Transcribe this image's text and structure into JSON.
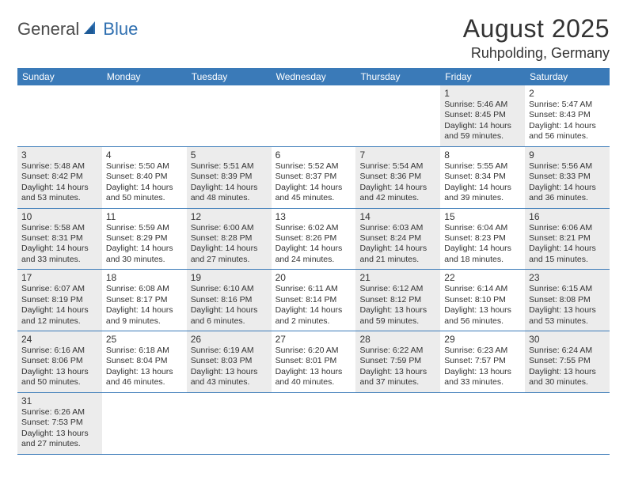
{
  "logo": {
    "part1": "General",
    "part2": "Blue"
  },
  "title": "August 2025",
  "location": "Ruhpolding, Germany",
  "colors": {
    "headerBar": "#3a7ab8",
    "headerText": "#ffffff",
    "shadedCell": "#ececec",
    "text": "#333333",
    "logoGray": "#4a4a4a",
    "logoBlue": "#2f6fb0",
    "rowBorder": "#3a7ab8"
  },
  "weekdays": [
    "Sunday",
    "Monday",
    "Tuesday",
    "Wednesday",
    "Thursday",
    "Friday",
    "Saturday"
  ],
  "weeks": [
    [
      {
        "day": null
      },
      {
        "day": null
      },
      {
        "day": null
      },
      {
        "day": null
      },
      {
        "day": null
      },
      {
        "day": 1,
        "shaded": true,
        "sunrise": "5:46 AM",
        "sunset": "8:45 PM",
        "daylight": "14 hours and 59 minutes."
      },
      {
        "day": 2,
        "shaded": false,
        "sunrise": "5:47 AM",
        "sunset": "8:43 PM",
        "daylight": "14 hours and 56 minutes."
      }
    ],
    [
      {
        "day": 3,
        "shaded": true,
        "sunrise": "5:48 AM",
        "sunset": "8:42 PM",
        "daylight": "14 hours and 53 minutes."
      },
      {
        "day": 4,
        "shaded": false,
        "sunrise": "5:50 AM",
        "sunset": "8:40 PM",
        "daylight": "14 hours and 50 minutes."
      },
      {
        "day": 5,
        "shaded": true,
        "sunrise": "5:51 AM",
        "sunset": "8:39 PM",
        "daylight": "14 hours and 48 minutes."
      },
      {
        "day": 6,
        "shaded": false,
        "sunrise": "5:52 AM",
        "sunset": "8:37 PM",
        "daylight": "14 hours and 45 minutes."
      },
      {
        "day": 7,
        "shaded": true,
        "sunrise": "5:54 AM",
        "sunset": "8:36 PM",
        "daylight": "14 hours and 42 minutes."
      },
      {
        "day": 8,
        "shaded": false,
        "sunrise": "5:55 AM",
        "sunset": "8:34 PM",
        "daylight": "14 hours and 39 minutes."
      },
      {
        "day": 9,
        "shaded": true,
        "sunrise": "5:56 AM",
        "sunset": "8:33 PM",
        "daylight": "14 hours and 36 minutes."
      }
    ],
    [
      {
        "day": 10,
        "shaded": true,
        "sunrise": "5:58 AM",
        "sunset": "8:31 PM",
        "daylight": "14 hours and 33 minutes."
      },
      {
        "day": 11,
        "shaded": false,
        "sunrise": "5:59 AM",
        "sunset": "8:29 PM",
        "daylight": "14 hours and 30 minutes."
      },
      {
        "day": 12,
        "shaded": true,
        "sunrise": "6:00 AM",
        "sunset": "8:28 PM",
        "daylight": "14 hours and 27 minutes."
      },
      {
        "day": 13,
        "shaded": false,
        "sunrise": "6:02 AM",
        "sunset": "8:26 PM",
        "daylight": "14 hours and 24 minutes."
      },
      {
        "day": 14,
        "shaded": true,
        "sunrise": "6:03 AM",
        "sunset": "8:24 PM",
        "daylight": "14 hours and 21 minutes."
      },
      {
        "day": 15,
        "shaded": false,
        "sunrise": "6:04 AM",
        "sunset": "8:23 PM",
        "daylight": "14 hours and 18 minutes."
      },
      {
        "day": 16,
        "shaded": true,
        "sunrise": "6:06 AM",
        "sunset": "8:21 PM",
        "daylight": "14 hours and 15 minutes."
      }
    ],
    [
      {
        "day": 17,
        "shaded": true,
        "sunrise": "6:07 AM",
        "sunset": "8:19 PM",
        "daylight": "14 hours and 12 minutes."
      },
      {
        "day": 18,
        "shaded": false,
        "sunrise": "6:08 AM",
        "sunset": "8:17 PM",
        "daylight": "14 hours and 9 minutes."
      },
      {
        "day": 19,
        "shaded": true,
        "sunrise": "6:10 AM",
        "sunset": "8:16 PM",
        "daylight": "14 hours and 6 minutes."
      },
      {
        "day": 20,
        "shaded": false,
        "sunrise": "6:11 AM",
        "sunset": "8:14 PM",
        "daylight": "14 hours and 2 minutes."
      },
      {
        "day": 21,
        "shaded": true,
        "sunrise": "6:12 AM",
        "sunset": "8:12 PM",
        "daylight": "13 hours and 59 minutes."
      },
      {
        "day": 22,
        "shaded": false,
        "sunrise": "6:14 AM",
        "sunset": "8:10 PM",
        "daylight": "13 hours and 56 minutes."
      },
      {
        "day": 23,
        "shaded": true,
        "sunrise": "6:15 AM",
        "sunset": "8:08 PM",
        "daylight": "13 hours and 53 minutes."
      }
    ],
    [
      {
        "day": 24,
        "shaded": true,
        "sunrise": "6:16 AM",
        "sunset": "8:06 PM",
        "daylight": "13 hours and 50 minutes."
      },
      {
        "day": 25,
        "shaded": false,
        "sunrise": "6:18 AM",
        "sunset": "8:04 PM",
        "daylight": "13 hours and 46 minutes."
      },
      {
        "day": 26,
        "shaded": true,
        "sunrise": "6:19 AM",
        "sunset": "8:03 PM",
        "daylight": "13 hours and 43 minutes."
      },
      {
        "day": 27,
        "shaded": false,
        "sunrise": "6:20 AM",
        "sunset": "8:01 PM",
        "daylight": "13 hours and 40 minutes."
      },
      {
        "day": 28,
        "shaded": true,
        "sunrise": "6:22 AM",
        "sunset": "7:59 PM",
        "daylight": "13 hours and 37 minutes."
      },
      {
        "day": 29,
        "shaded": false,
        "sunrise": "6:23 AM",
        "sunset": "7:57 PM",
        "daylight": "13 hours and 33 minutes."
      },
      {
        "day": 30,
        "shaded": true,
        "sunrise": "6:24 AM",
        "sunset": "7:55 PM",
        "daylight": "13 hours and 30 minutes."
      }
    ],
    [
      {
        "day": 31,
        "shaded": true,
        "sunrise": "6:26 AM",
        "sunset": "7:53 PM",
        "daylight": "13 hours and 27 minutes."
      },
      {
        "day": null
      },
      {
        "day": null
      },
      {
        "day": null
      },
      {
        "day": null
      },
      {
        "day": null
      },
      {
        "day": null
      }
    ]
  ],
  "labels": {
    "sunrise": "Sunrise: ",
    "sunset": "Sunset: ",
    "daylight": "Daylight: "
  }
}
